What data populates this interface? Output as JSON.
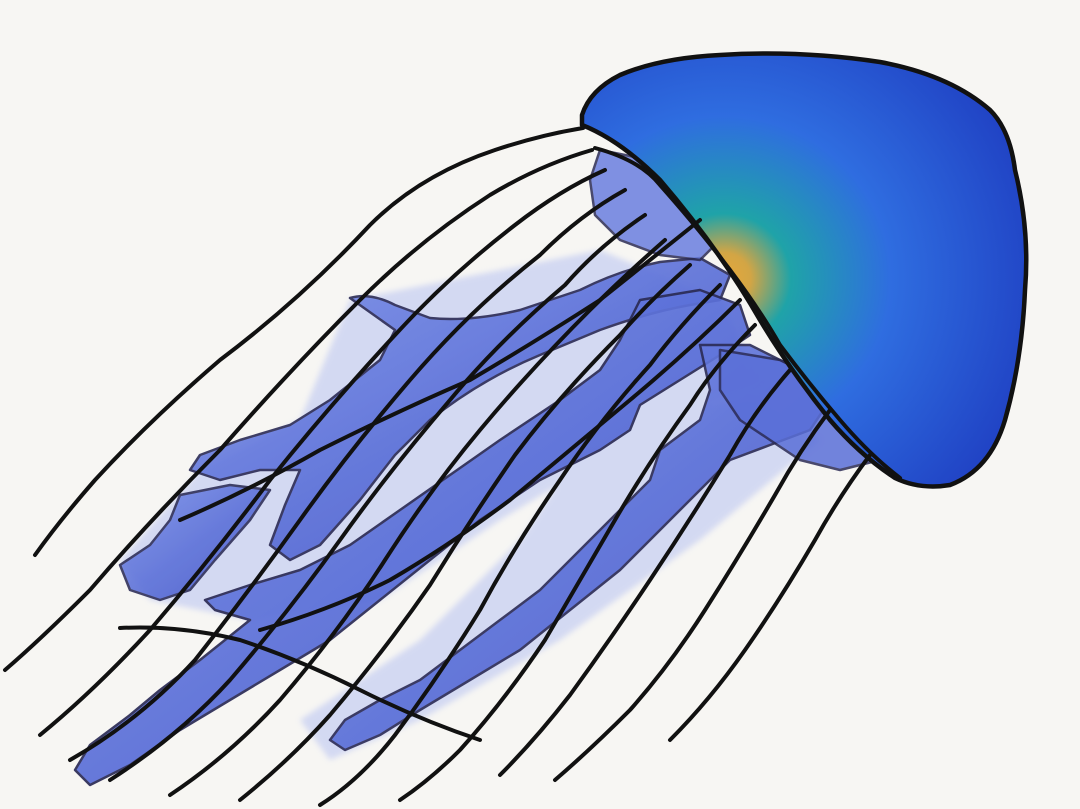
{
  "artwork": {
    "subject": "jellyfish",
    "colors": {
      "background": "#f7f6f3",
      "outline": "#111111",
      "bell_deep": "#1f3fc2",
      "bell_mid": "#2f6de0",
      "bell_teal": "#1fa3a8",
      "bell_glow": "#e8a93a",
      "arm_dark": "#4254c8",
      "arm_mid": "#5a6fd8",
      "arm_light": "#7e93ea",
      "arm_wash": "#b7c2f2"
    }
  }
}
